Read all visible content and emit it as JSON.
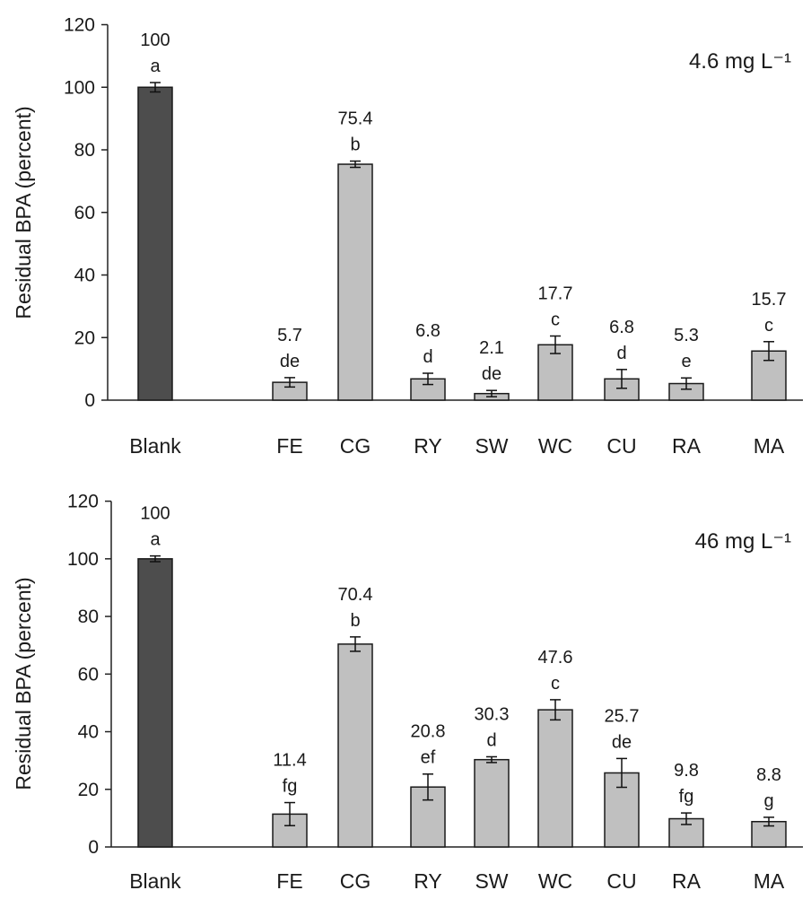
{
  "chart_data": [
    {
      "type": "bar",
      "annotation_label": "4.6 mg L⁻¹",
      "ylabel": "Residual BPA (percent)",
      "xlabel": "",
      "ylim": [
        0,
        120
      ],
      "yticks": [
        0,
        20,
        40,
        60,
        80,
        100,
        120
      ],
      "categories": [
        "Blank",
        "FE",
        "CG",
        "RY",
        "SW",
        "WC",
        "CU",
        "RA",
        "MA"
      ],
      "values": [
        100,
        5.7,
        75.4,
        6.8,
        2.1,
        17.7,
        6.8,
        5.3,
        15.7
      ],
      "value_labels": [
        "100",
        "5.7",
        "75.4",
        "6.8",
        "2.1",
        "17.7",
        "6.8",
        "5.3",
        "15.7"
      ],
      "errors": [
        1.5,
        1.5,
        1.0,
        1.8,
        1.0,
        2.8,
        3.0,
        1.8,
        3.0
      ],
      "groups": [
        "a",
        "de",
        "b",
        "d",
        "de",
        "c",
        "d",
        "e",
        "c"
      ],
      "colors": [
        "#4d4d4d",
        "#c0c0c0",
        "#c0c0c0",
        "#c0c0c0",
        "#c0c0c0",
        "#c0c0c0",
        "#c0c0c0",
        "#c0c0c0",
        "#c0c0c0"
      ]
    },
    {
      "type": "bar",
      "annotation_label": "46 mg L⁻¹",
      "ylabel": "Residual BPA (percent)",
      "xlabel": "",
      "ylim": [
        0,
        120
      ],
      "yticks": [
        0,
        20,
        40,
        60,
        80,
        100,
        120
      ],
      "categories": [
        "Blank",
        "FE",
        "CG",
        "RY",
        "SW",
        "WC",
        "CU",
        "RA",
        "MA"
      ],
      "values": [
        100,
        11.4,
        70.4,
        20.8,
        30.3,
        47.6,
        25.7,
        9.8,
        8.8
      ],
      "value_labels": [
        "100",
        "11.4",
        "70.4",
        "20.8",
        "30.3",
        "47.6",
        "25.7",
        "9.8",
        "8.8"
      ],
      "errors": [
        1.0,
        4.0,
        2.5,
        4.5,
        1.0,
        3.5,
        5.0,
        2.0,
        1.5
      ],
      "groups": [
        "a",
        "fg",
        "b",
        "ef",
        "d",
        "c",
        "de",
        "fg",
        "g"
      ],
      "colors": [
        "#4d4d4d",
        "#c0c0c0",
        "#c0c0c0",
        "#c0c0c0",
        "#c0c0c0",
        "#c0c0c0",
        "#c0c0c0",
        "#c0c0c0",
        "#c0c0c0"
      ]
    }
  ]
}
